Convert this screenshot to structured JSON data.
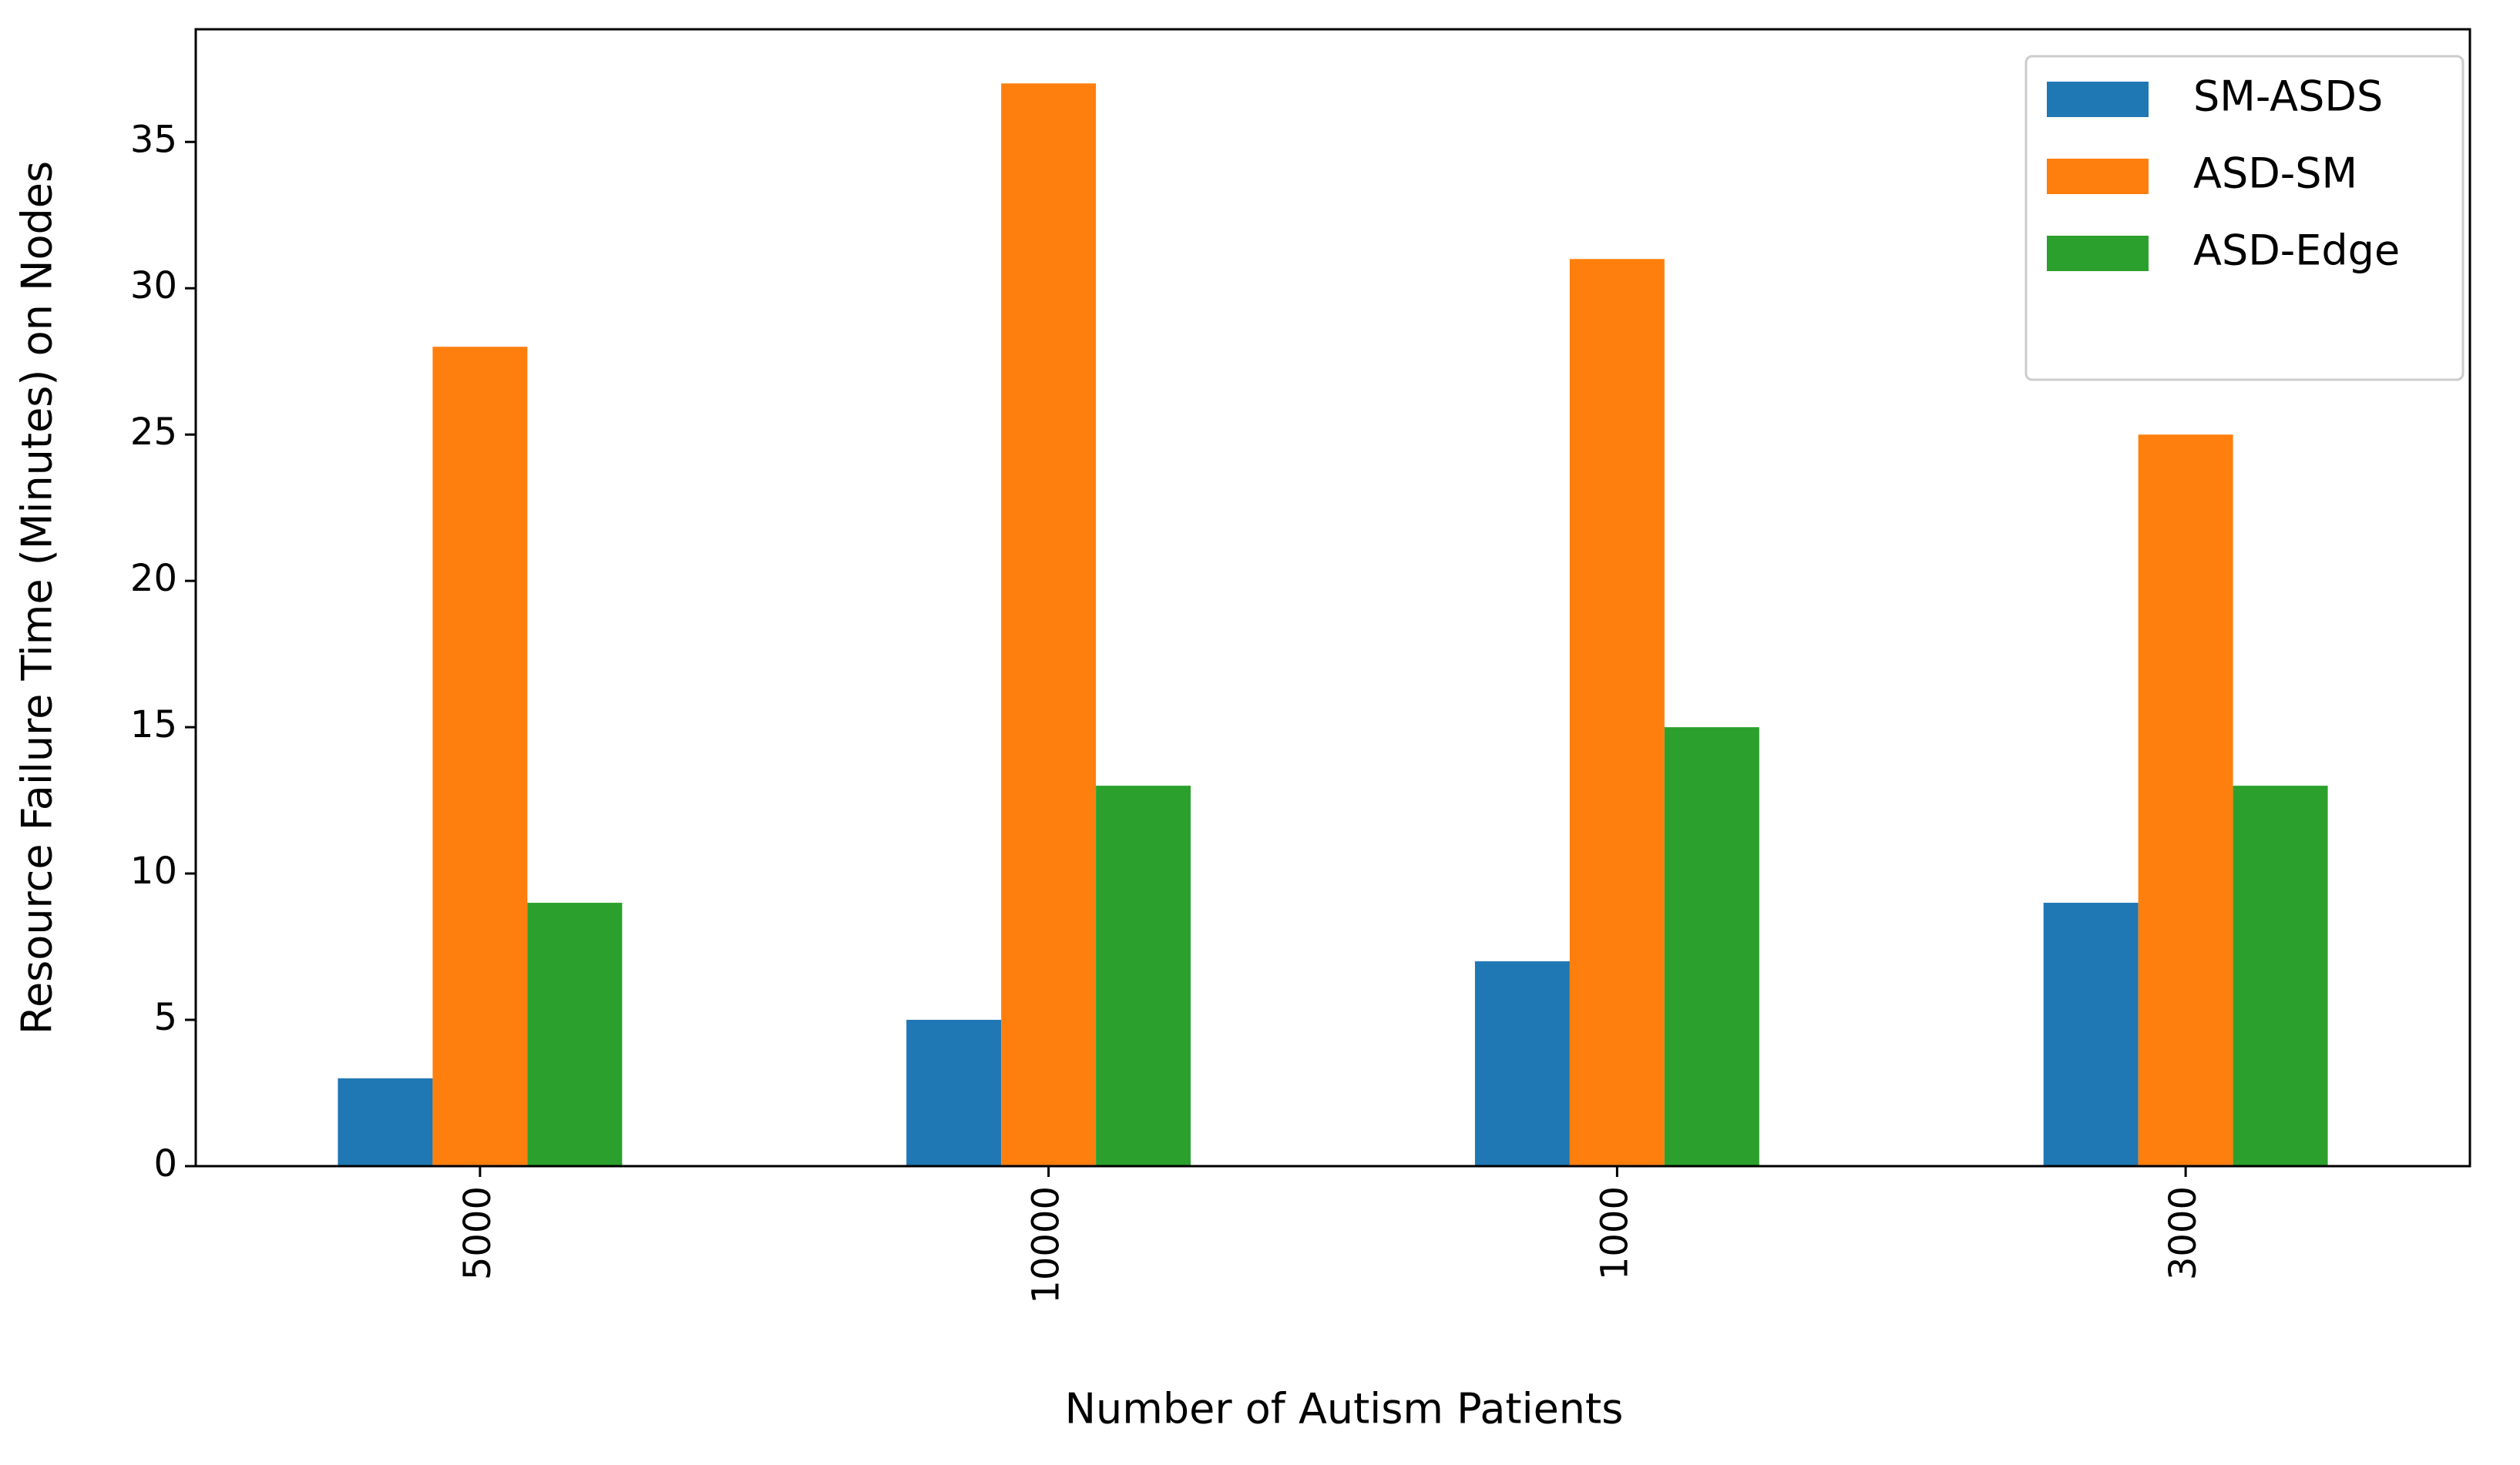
{
  "chart_data": {
    "type": "bar",
    "x_label": "Number of Autism Patients",
    "y_label": "Resource Failure Time (Minutes) on Nodes",
    "categories": [
      "5000",
      "10000",
      "1000",
      "3000"
    ],
    "series": [
      {
        "name": "SM-ASDS",
        "color": "#1f77b4",
        "values": [
          3,
          5,
          7,
          9
        ]
      },
      {
        "name": "ASD-SM",
        "color": "#ff7f0e",
        "values": [
          28,
          37,
          31,
          25
        ]
      },
      {
        "name": "ASD-Edge",
        "color": "#2ca02c",
        "values": [
          9,
          13,
          15,
          13
        ]
      }
    ],
    "ylim": [
      0,
      38.85
    ],
    "yticks": [
      0,
      5,
      10,
      15,
      20,
      25,
      30,
      35
    ],
    "grid": false,
    "legend": "upper right"
  }
}
